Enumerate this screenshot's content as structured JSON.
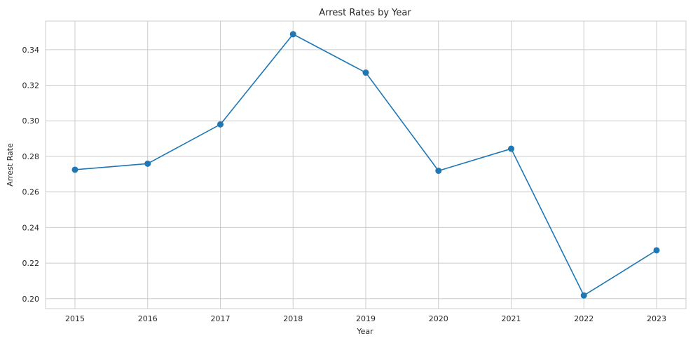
{
  "chart_data": {
    "type": "line",
    "title": "Arrest Rates by Year",
    "xlabel": "Year",
    "ylabel": "Arrest Rate",
    "x": [
      "2015",
      "2016",
      "2017",
      "2018",
      "2019",
      "2020",
      "2021",
      "2022",
      "2023"
    ],
    "series": [
      {
        "values": [
          0.2725,
          0.2759,
          0.298,
          0.3487,
          0.3271,
          0.2719,
          0.2843,
          0.2018,
          0.2272
        ],
        "color": "#1f77b4",
        "marker": "circle"
      }
    ],
    "yticks": [
      "0.20",
      "0.22",
      "0.24",
      "0.26",
      "0.28",
      "0.30",
      "0.32",
      "0.34"
    ],
    "ylim": [
      0.1944,
      0.3561
    ],
    "grid": true,
    "style": "whitegrid"
  }
}
